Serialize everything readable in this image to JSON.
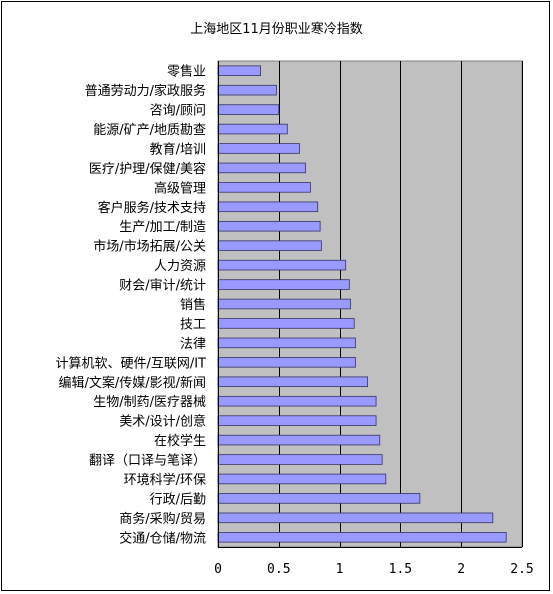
{
  "chart_data": {
    "type": "bar",
    "orientation": "horizontal",
    "title": "上海地区11月份职业寒冷指数",
    "categories": [
      "零售业",
      "普通劳动力/家政服务",
      "咨询/顾问",
      "能源/矿产/地质勘查",
      "教育/培训",
      "医疗/护理/保健/美容",
      "高级管理",
      "客户服务/技术支持",
      "生产/加工/制造",
      "市场/市场拓展/公关",
      "人力资源",
      "财会/审计/统计",
      "销售",
      "技工",
      "法律",
      "计算机软、硬件/互联网/IT",
      "编辑/文案/传媒/影视/新闻",
      "生物/制药/医疗器械",
      "美术/设计/创意",
      "在校学生",
      "翻译（口译与笔译）",
      "环境科学/环保",
      "行政/后勤",
      "商务/采购/贸易",
      "交通/仓储/物流"
    ],
    "values": [
      0.35,
      0.48,
      0.5,
      0.57,
      0.67,
      0.72,
      0.76,
      0.82,
      0.84,
      0.85,
      1.05,
      1.08,
      1.09,
      1.12,
      1.13,
      1.13,
      1.23,
      1.3,
      1.3,
      1.33,
      1.35,
      1.38,
      1.66,
      2.26,
      2.37
    ],
    "xlim": [
      0,
      2.5
    ],
    "xticks": [
      0,
      0.5,
      1,
      1.5,
      2,
      2.5
    ],
    "xtick_labels": [
      "0",
      "0.5",
      "1",
      "1.5",
      "2",
      "2.5"
    ],
    "xlabel": "",
    "ylabel": "",
    "grid": true,
    "colors": {
      "plot_background": "#c0c0c0",
      "bar_fill": "#9999ff",
      "bar_stroke": "#333366",
      "grid": "#000000"
    }
  }
}
